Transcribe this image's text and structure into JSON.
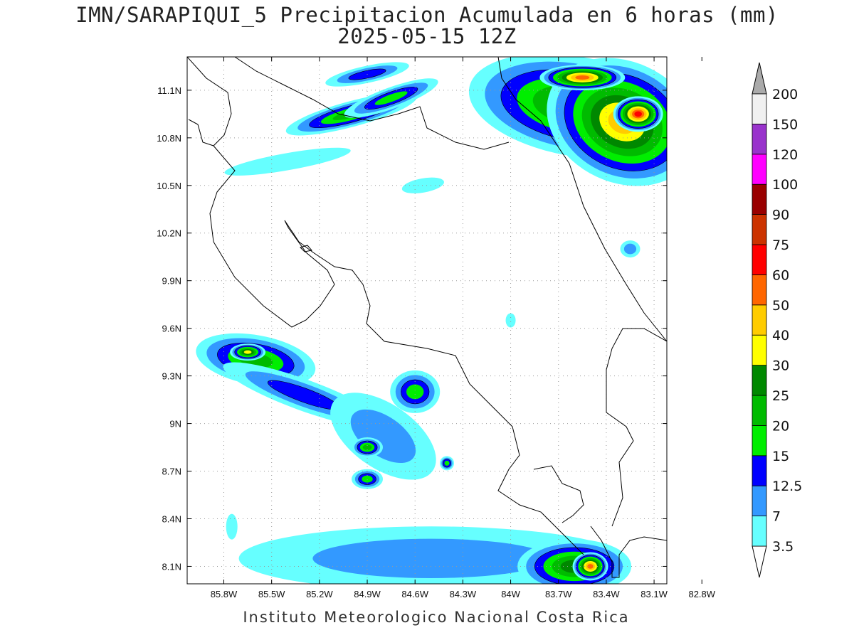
{
  "title": {
    "line1": "IMN/SARAPIQUI_5 Precipitacion Acumulada en 6 horas (mm)",
    "line2": "2025-05-15 12Z"
  },
  "footer": "Instituto Meteorologico Nacional Costa Rica",
  "lat_ticks": [
    {
      "value": 11.1,
      "label": "11.1N"
    },
    {
      "value": 10.8,
      "label": "10.8N"
    },
    {
      "value": 10.5,
      "label": "10.5N"
    },
    {
      "value": 10.2,
      "label": "10.2N"
    },
    {
      "value": 9.9,
      "label": "9.9N"
    },
    {
      "value": 9.6,
      "label": "9.6N"
    },
    {
      "value": 9.3,
      "label": "9.3N"
    },
    {
      "value": 9.0,
      "label": "9N"
    },
    {
      "value": 8.7,
      "label": "8.7N"
    },
    {
      "value": 8.4,
      "label": "8.4N"
    },
    {
      "value": 8.1,
      "label": "8.1N"
    }
  ],
  "lon_ticks": [
    {
      "value": -85.8,
      "label": "85.8W"
    },
    {
      "value": -85.5,
      "label": "85.5W"
    },
    {
      "value": -85.2,
      "label": "85.2W"
    },
    {
      "value": -84.9,
      "label": "84.9W"
    },
    {
      "value": -84.6,
      "label": "84.6W"
    },
    {
      "value": -84.3,
      "label": "84.3W"
    },
    {
      "value": -84.0,
      "label": "84W"
    },
    {
      "value": -83.7,
      "label": "83.7W"
    },
    {
      "value": -83.4,
      "label": "83.4W"
    },
    {
      "value": -83.1,
      "label": "83.1W"
    },
    {
      "value": -82.8,
      "label": "82.8W"
    }
  ],
  "extent": {
    "lon": [
      -86.03,
      -83.02
    ],
    "lat": [
      7.99,
      11.31
    ]
  },
  "colorbar": {
    "levels": [
      "3.5",
      "7",
      "12.5",
      "15",
      "20",
      "25",
      "30",
      "40",
      "50",
      "60",
      "75",
      "90",
      "100",
      "120",
      "150",
      "200"
    ],
    "colors": [
      "#ffffff",
      "#66ffff",
      "#3399ff",
      "#0000ff",
      "#00ee00",
      "#00bb00",
      "#008800",
      "#ffff00",
      "#ffcc00",
      "#ff6600",
      "#ff0000",
      "#cc3300",
      "#990000",
      "#ff00ff",
      "#9933cc",
      "#f0f0f0"
    ],
    "over_color": "#aaaaaa",
    "under_color": "#ffffff"
  },
  "precip_cells": [
    {
      "lon": -85.0,
      "lat": 10.95,
      "rx": 95,
      "ry": 18,
      "rot": -15,
      "level": 5
    },
    {
      "lon": -84.75,
      "lat": 11.05,
      "rx": 70,
      "ry": 15,
      "rot": -20,
      "level": 4
    },
    {
      "lon": -84.9,
      "lat": 11.2,
      "rx": 60,
      "ry": 12,
      "rot": -12,
      "level": 3
    },
    {
      "lon": -83.6,
      "lat": 11.0,
      "rx": 150,
      "ry": 70,
      "rot": 10,
      "level": 6
    },
    {
      "lon": -83.3,
      "lat": 10.9,
      "rx": 110,
      "ry": 85,
      "rot": 25,
      "level": 8
    },
    {
      "lon": -83.55,
      "lat": 11.18,
      "rx": 60,
      "ry": 18,
      "rot": 0,
      "level": 9
    },
    {
      "lon": -83.2,
      "lat": 10.95,
      "rx": 35,
      "ry": 25,
      "rot": 0,
      "level": 10
    },
    {
      "lon": -85.4,
      "lat": 10.65,
      "rx": 90,
      "ry": 12,
      "rot": -10,
      "level": 1
    },
    {
      "lon": -84.55,
      "lat": 10.5,
      "rx": 30,
      "ry": 10,
      "rot": -10,
      "level": 1
    },
    {
      "lon": -85.6,
      "lat": 9.4,
      "rx": 85,
      "ry": 35,
      "rot": 10,
      "level": 5
    },
    {
      "lon": -85.3,
      "lat": 9.18,
      "rx": 120,
      "ry": 22,
      "rot": 20,
      "level": 3
    },
    {
      "lon": -85.65,
      "lat": 9.45,
      "rx": 25,
      "ry": 12,
      "rot": 0,
      "level": 7
    },
    {
      "lon": -84.8,
      "lat": 8.92,
      "rx": 85,
      "ry": 45,
      "rot": 35,
      "level": 2
    },
    {
      "lon": -84.9,
      "lat": 8.85,
      "rx": 22,
      "ry": 14,
      "rot": 0,
      "level": 5
    },
    {
      "lon": -84.6,
      "lat": 9.2,
      "rx": 35,
      "ry": 30,
      "rot": 0,
      "level": 4
    },
    {
      "lon": -84.9,
      "lat": 8.65,
      "rx": 22,
      "ry": 14,
      "rot": 0,
      "level": 4
    },
    {
      "lon": -84.4,
      "lat": 8.75,
      "rx": 10,
      "ry": 10,
      "rot": 0,
      "level": 4
    },
    {
      "lon": -84.5,
      "lat": 8.15,
      "rx": 270,
      "ry": 45,
      "rot": 0,
      "level": 2
    },
    {
      "lon": -83.6,
      "lat": 8.1,
      "rx": 80,
      "ry": 38,
      "rot": 0,
      "level": 6
    },
    {
      "lon": -83.5,
      "lat": 8.1,
      "rx": 25,
      "ry": 20,
      "rot": 0,
      "level": 9
    },
    {
      "lon": -83.25,
      "lat": 10.1,
      "rx": 14,
      "ry": 12,
      "rot": 0,
      "level": 2
    },
    {
      "lon": -84.0,
      "lat": 9.65,
      "rx": 7,
      "ry": 10,
      "rot": 0,
      "level": 1
    },
    {
      "lon": -85.75,
      "lat": 8.35,
      "rx": 8,
      "ry": 18,
      "rot": 0,
      "level": 1
    }
  ]
}
